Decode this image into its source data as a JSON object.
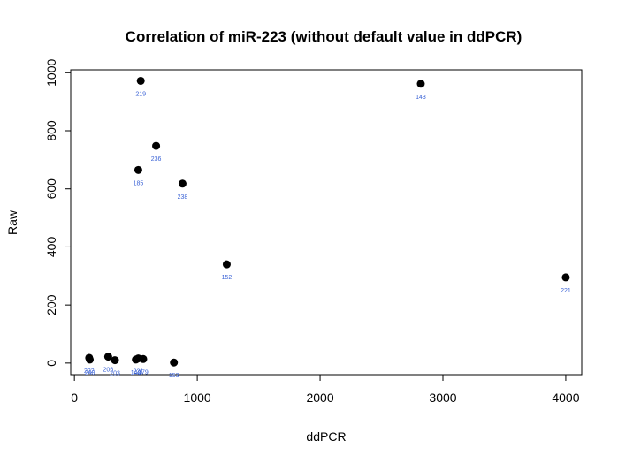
{
  "chart_data": {
    "type": "scatter",
    "title": "Correlation of miR-223 (without default value in ddPCR)",
    "xlabel": "ddPCR",
    "ylabel": "Raw",
    "xlim": [
      -30,
      4130
    ],
    "ylim": [
      -40,
      1010
    ],
    "xticks": [
      "0",
      "1000",
      "2000",
      "3000",
      "4000"
    ],
    "yticks": [
      "0",
      "200",
      "400",
      "600",
      "800",
      "1000"
    ],
    "point_color": "#000000",
    "label_color": "#3b63d6",
    "grid": false,
    "points": [
      {
        "x": 540,
        "y": 972,
        "label": "219"
      },
      {
        "x": 2820,
        "y": 962,
        "label": "143"
      },
      {
        "x": 665,
        "y": 748,
        "label": "236"
      },
      {
        "x": 520,
        "y": 665,
        "label": "185"
      },
      {
        "x": 880,
        "y": 618,
        "label": "238"
      },
      {
        "x": 1240,
        "y": 340,
        "label": "152"
      },
      {
        "x": 4000,
        "y": 295,
        "label": "221"
      },
      {
        "x": 120,
        "y": 18,
        "label": "222"
      },
      {
        "x": 125,
        "y": 12,
        "label": "240"
      },
      {
        "x": 275,
        "y": 22,
        "label": "206"
      },
      {
        "x": 330,
        "y": 10,
        "label": "203"
      },
      {
        "x": 500,
        "y": 12,
        "label": "148"
      },
      {
        "x": 520,
        "y": 16,
        "label": "221"
      },
      {
        "x": 560,
        "y": 14,
        "label": "179"
      },
      {
        "x": 810,
        "y": 2,
        "label": "153"
      }
    ]
  }
}
